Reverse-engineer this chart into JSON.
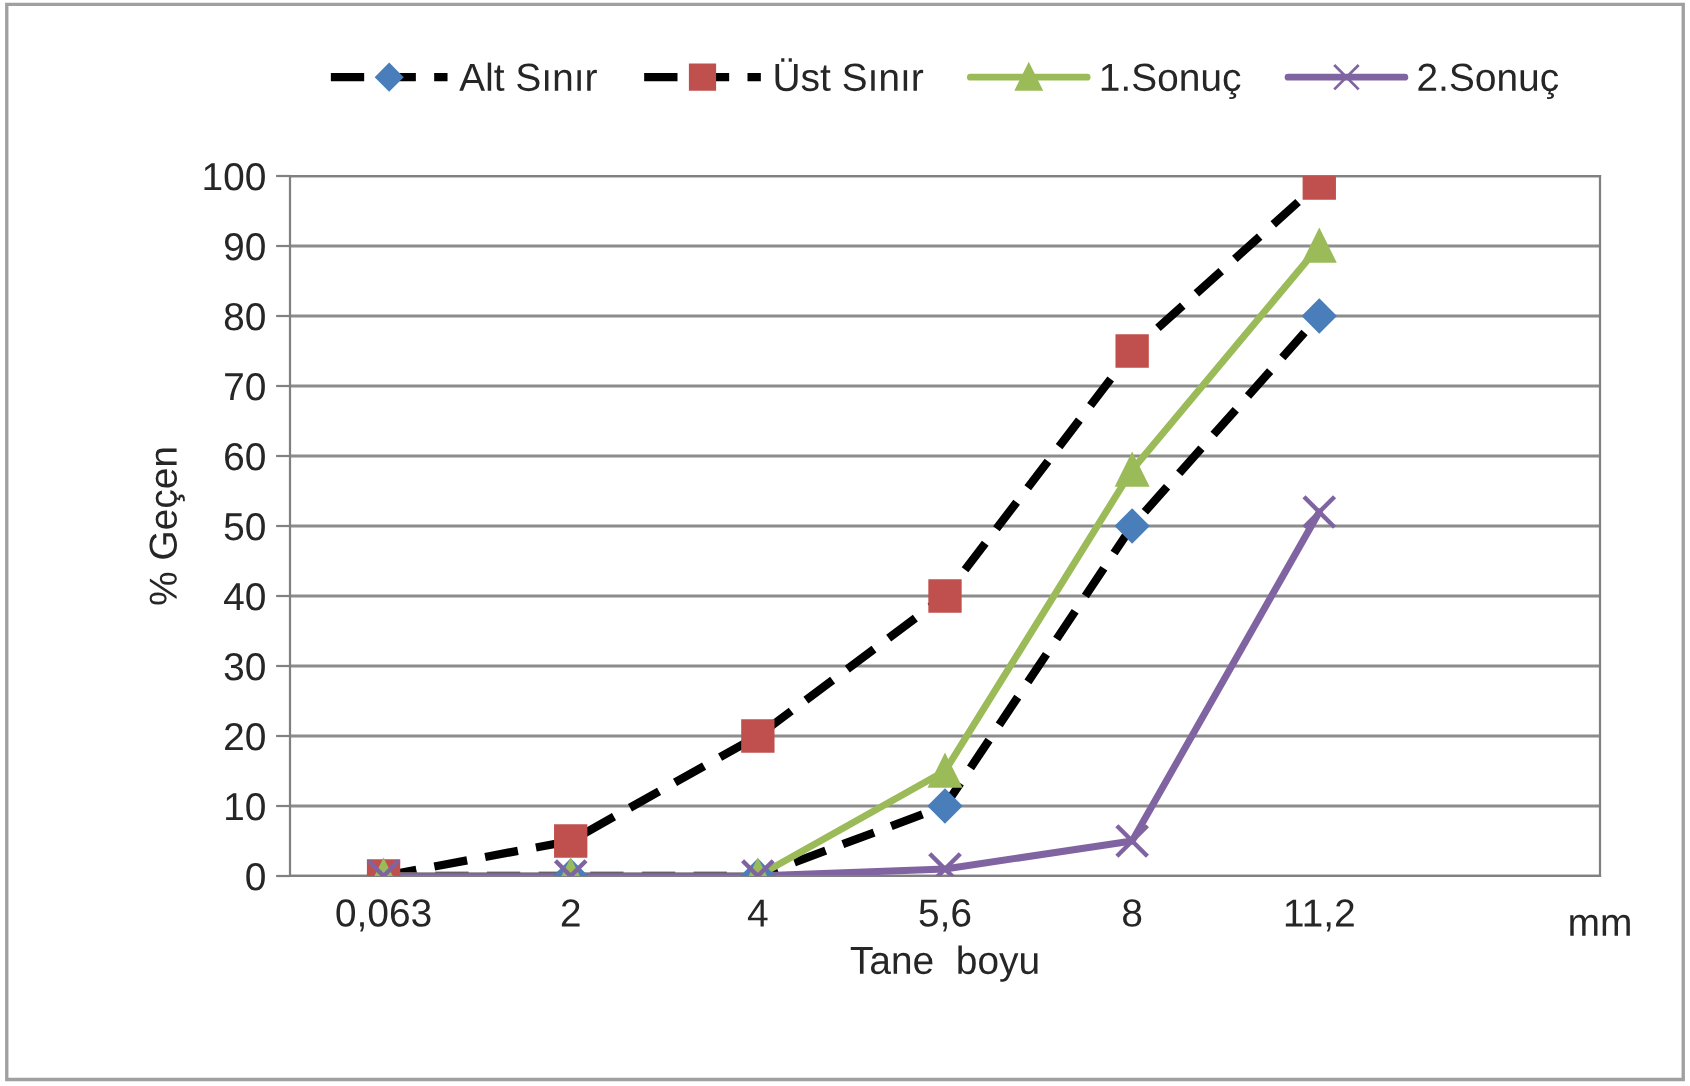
{
  "chart_data": {
    "type": "line",
    "xlabel": "Tane  boyu",
    "ylabel": "% Geçen",
    "categories": [
      "0,063",
      "2",
      "4",
      "5,6",
      "8",
      "11,2",
      null
    ],
    "ylim": [
      0,
      100
    ],
    "yticks": [
      0,
      10,
      20,
      30,
      40,
      50,
      60,
      70,
      80,
      90,
      100
    ],
    "grid": "y",
    "legend": "top",
    "annotations": [
      "mm"
    ],
    "series": [
      {
        "name": "Alt Sınır",
        "color": "#000000",
        "colors": [
          "#4a7ebb",
          "#4a7ebb",
          "#4a7ebb",
          "#4a7ebb",
          "#4a7ebb",
          "#4a7ebb",
          "#4a7ebb"
        ],
        "marker": "diamond",
        "line_style": "dashed",
        "values": [
          0,
          0,
          0,
          10,
          50,
          80,
          null
        ]
      },
      {
        "name": "Üst Sınır",
        "color": "#000000",
        "colors": [
          "#c0504d",
          "#c0504d",
          "#c0504d",
          "#c0504d",
          "#c0504d",
          "#c0504d",
          "#c0504d"
        ],
        "marker": "square",
        "line_style": "dashed",
        "values": [
          0,
          5,
          20,
          40,
          75,
          99,
          null
        ]
      },
      {
        "name": "1.Sonuç",
        "color": "#9bbb59",
        "marker": "triangle",
        "line_style": "solid",
        "values": [
          0,
          0,
          0,
          15,
          58,
          90,
          null
        ]
      },
      {
        "name": "2.Sonuç",
        "color": "#8064a2",
        "marker": "cross",
        "line_style": "solid",
        "values": [
          0,
          0,
          0,
          1,
          5,
          52,
          null
        ]
      }
    ]
  }
}
